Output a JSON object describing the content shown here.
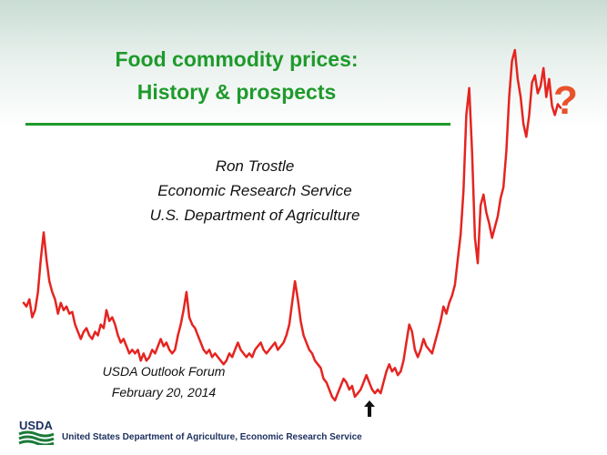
{
  "slide": {
    "title_line1": "Food commodity prices:",
    "title_line2": "History & prospects",
    "author_name": "Ron Trostle",
    "author_org": "Economic Research Service",
    "author_dept": "U.S. Department of Agriculture",
    "forum_name": "USDA Outlook Forum",
    "forum_date": "February 20, 2014",
    "question_mark": "?",
    "logo_text": "USDA",
    "footer": "United States Department of Agriculture, Economic Research Service"
  },
  "colors": {
    "title_green": "#1f9a2c",
    "line_red": "#e52420",
    "question_orange": "#e8522a",
    "footer_navy": "#1b2f5e"
  },
  "chart_data": {
    "type": "line",
    "series": [
      {
        "values": [
          56,
          54,
          58,
          48,
          52,
          62,
          80,
          95,
          80,
          68,
          62,
          58,
          50,
          56,
          52,
          54,
          50,
          51,
          44,
          40,
          36,
          40,
          42,
          38,
          36,
          40,
          38,
          44,
          42,
          52,
          46,
          48,
          44,
          38,
          34,
          36,
          32,
          28,
          30,
          28,
          30,
          24,
          28,
          24,
          26,
          30,
          28,
          32,
          36,
          32,
          34,
          30,
          28,
          30,
          38,
          44,
          52,
          62,
          48,
          44,
          42,
          38,
          34,
          30,
          28,
          30,
          26,
          28,
          26,
          24,
          22,
          24,
          28,
          26,
          30,
          34,
          30,
          28,
          26,
          28,
          26,
          30,
          32,
          34,
          30,
          28,
          30,
          32,
          34,
          30,
          32,
          34,
          38,
          44,
          56,
          68,
          58,
          46,
          38,
          34,
          30,
          28,
          24,
          22,
          20,
          14,
          12,
          8,
          4,
          2,
          6,
          10,
          14,
          12,
          8,
          10,
          4,
          6,
          8,
          12,
          16,
          12,
          8,
          6,
          8,
          6,
          12,
          18,
          22,
          18,
          20,
          16,
          18,
          24,
          34,
          44,
          40,
          30,
          26,
          30,
          36,
          32,
          30,
          28,
          34,
          40,
          46,
          54,
          50,
          56,
          60,
          66,
          80,
          94,
          118,
          160,
          175,
          140,
          92,
          78,
          110,
          116,
          106,
          100,
          92,
          98,
          104,
          114,
          120,
          140,
          170,
          190,
          196,
          180,
          170,
          155,
          148,
          160,
          178,
          182,
          172,
          176,
          186,
          170,
          180,
          165,
          160,
          166,
          164
        ]
      }
    ],
    "trend": "indexed food commodity price history from left to right with a sharp spike toward the end"
  }
}
